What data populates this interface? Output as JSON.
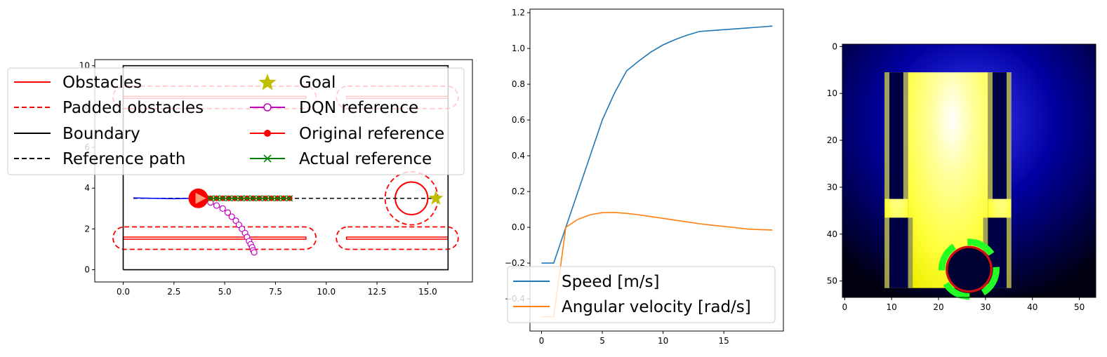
{
  "colors": {
    "obstacle": "#ff0000",
    "padded": "#ff0000",
    "boundary": "#000000",
    "reference": "#000000",
    "goal": "#bfbf00",
    "dqn": "#bf00bf",
    "original": "#ff0000",
    "actual": "#008000",
    "path_blue": "#0000ff",
    "speed": "#1f77b4",
    "angular": "#ff7f0e"
  },
  "chart_data": [
    {
      "type": "line",
      "xlim": [
        -1.4,
        17.2
      ],
      "ylim": [
        -0.6,
        10.3
      ],
      "x_ticks": [
        "0.0",
        "2.5",
        "5.0",
        "7.5",
        "10.0",
        "12.5",
        "15.0"
      ],
      "x_tick_values": [
        0,
        2.5,
        5,
        7.5,
        10,
        12.5,
        15
      ],
      "y_ticks": [
        "0",
        "2",
        "4",
        "6",
        "8",
        "10"
      ],
      "y_tick_values": [
        0,
        2,
        4,
        6,
        8,
        10
      ],
      "legend": {
        "placement": "upper-left",
        "entries": [
          {
            "label": "Obstacles",
            "style": "solid",
            "color": "#ff0000"
          },
          {
            "label": "Padded obstacles",
            "style": "dashed",
            "color": "#ff0000"
          },
          {
            "label": "Boundary",
            "style": "solid",
            "color": "#000000"
          },
          {
            "label": "Reference path",
            "style": "dashed",
            "color": "#000000"
          },
          {
            "label": "Goal",
            "style": "star",
            "color": "#bfbf00"
          },
          {
            "label": "DQN reference",
            "style": "circle-open",
            "color": "#bf00bf"
          },
          {
            "label": "Original reference",
            "style": "dot",
            "color": "#ff0000"
          },
          {
            "label": "Actual reference",
            "style": "x",
            "color": "#008000"
          }
        ]
      },
      "boundary": [
        [
          0,
          0
        ],
        [
          16,
          0
        ],
        [
          16,
          10
        ],
        [
          0,
          10
        ],
        [
          0,
          0
        ]
      ],
      "obstacles": [
        {
          "x0": 0,
          "x1": 9,
          "y0": 1.5,
          "y1": 1.6
        },
        {
          "x0": 11,
          "x1": 16,
          "y0": 1.5,
          "y1": 1.6
        },
        {
          "x0": 0,
          "x1": 9,
          "y0": 8.4,
          "y1": 8.5
        },
        {
          "x0": 11,
          "x1": 16,
          "y0": 8.4,
          "y1": 8.5
        }
      ],
      "padded_obstacles": [
        {
          "x0": -0.5,
          "x1": 9.5,
          "y0": 1.0,
          "y1": 2.1
        },
        {
          "x0": 10.5,
          "x1": 16.5,
          "y0": 1.0,
          "y1": 2.1
        },
        {
          "x0": -0.5,
          "x1": 9.5,
          "y0": 7.9,
          "y1": 9.0
        },
        {
          "x0": 10.5,
          "x1": 16.5,
          "y0": 7.9,
          "y1": 9.0
        }
      ],
      "circle_obstacle": {
        "cx": 14.2,
        "cy": 3.5,
        "r": 0.8,
        "padded_r": 1.3
      },
      "reference_path": [
        [
          0.5,
          3.5
        ],
        [
          15.4,
          3.5
        ]
      ],
      "goal": [
        15.4,
        3.5
      ],
      "traveled_path": [
        [
          0.5,
          3.52
        ],
        [
          1.5,
          3.5
        ],
        [
          2.5,
          3.48
        ],
        [
          3.3,
          3.5
        ],
        [
          3.7,
          3.5
        ]
      ],
      "robot": {
        "x": 3.7,
        "y": 3.5
      },
      "dqn_reference": {
        "x": [
          4.0,
          4.3,
          4.6,
          4.9,
          5.15,
          5.35,
          5.55,
          5.7,
          5.85,
          6.0,
          6.1,
          6.2,
          6.28,
          6.35,
          6.4,
          6.45
        ],
        "y": [
          3.45,
          3.3,
          3.15,
          3.0,
          2.8,
          2.6,
          2.4,
          2.2,
          2.0,
          1.8,
          1.6,
          1.4,
          1.25,
          1.1,
          0.95,
          0.85
        ]
      },
      "original_reference": {
        "x": [
          4.0,
          4.3,
          4.6,
          4.9,
          5.2,
          5.5,
          5.8,
          6.1,
          6.4,
          6.7,
          7.0,
          7.3,
          7.6,
          7.9,
          8.2
        ],
        "y": [
          3.5,
          3.5,
          3.5,
          3.5,
          3.5,
          3.5,
          3.5,
          3.5,
          3.5,
          3.5,
          3.5,
          3.5,
          3.5,
          3.5,
          3.5
        ]
      },
      "actual_reference": {
        "x": [
          4.0,
          4.3,
          4.6,
          4.9,
          5.2,
          5.5,
          5.8,
          6.1,
          6.4,
          6.7,
          7.0,
          7.3,
          7.6,
          7.9,
          8.2
        ],
        "y": [
          3.5,
          3.5,
          3.5,
          3.5,
          3.5,
          3.5,
          3.5,
          3.5,
          3.5,
          3.5,
          3.5,
          3.5,
          3.5,
          3.5,
          3.5
        ]
      }
    },
    {
      "type": "line",
      "xlim": [
        -0.95,
        19.9
      ],
      "ylim": [
        -0.58,
        1.22
      ],
      "x_ticks": [
        "0",
        "5",
        "10",
        "15"
      ],
      "x_tick_values": [
        0,
        5,
        10,
        15
      ],
      "y_ticks": [
        "−0.4",
        "−0.2",
        "0.0",
        "0.2",
        "0.4",
        "0.6",
        "0.8",
        "1.0",
        "1.2"
      ],
      "y_tick_values": [
        -0.4,
        -0.2,
        0,
        0.2,
        0.4,
        0.6,
        0.8,
        1.0,
        1.2
      ],
      "legend": {
        "placement": "lower-left"
      },
      "x": [
        0,
        1,
        2,
        3,
        4,
        5,
        6,
        7,
        8,
        9,
        10,
        11,
        12,
        13,
        14,
        15,
        16,
        17,
        18,
        19
      ],
      "series": [
        {
          "name": "Speed [m/s]",
          "color": "#1f77b4",
          "values": [
            -0.2,
            -0.2,
            0.0,
            0.2,
            0.4,
            0.6,
            0.75,
            0.875,
            0.93,
            0.98,
            1.02,
            1.05,
            1.075,
            1.095,
            1.1,
            1.105,
            1.11,
            1.115,
            1.12,
            1.125
          ]
        },
        {
          "name": "Angular velocity [rad/s]",
          "color": "#ff7f0e",
          "values": [
            -0.5,
            -0.5,
            0.0,
            0.045,
            0.07,
            0.082,
            0.083,
            0.078,
            0.07,
            0.06,
            0.05,
            0.04,
            0.03,
            0.02,
            0.012,
            0.005,
            -0.002,
            -0.01,
            -0.013,
            -0.015
          ]
        }
      ]
    },
    {
      "type": "heatmap",
      "grid": 54,
      "xlim": [
        -0.5,
        53.5
      ],
      "ylim": [
        53.5,
        -0.5
      ],
      "x_ticks": [
        "0",
        "10",
        "20",
        "30",
        "40",
        "50"
      ],
      "x_tick_values": [
        0,
        10,
        20,
        30,
        40,
        50
      ],
      "y_ticks": [
        "0",
        "10",
        "20",
        "30",
        "40",
        "50"
      ],
      "y_tick_values": [
        0,
        10,
        20,
        30,
        40,
        50
      ],
      "bright_center": [
        27,
        16
      ],
      "floor_regions": [
        {
          "col0": 9,
          "col1": 14,
          "row0": 6,
          "row1": 52
        },
        {
          "col0": 14,
          "col1": 31,
          "row0": 6,
          "row1": 52
        },
        {
          "col0": 31,
          "col1": 36,
          "row0": 6,
          "row1": 52
        }
      ],
      "wall_regions": [
        {
          "col0": 10,
          "col1": 13,
          "row0": 6,
          "row1": 33
        },
        {
          "col0": 32,
          "col1": 35,
          "row0": 6,
          "row1": 33
        },
        {
          "col0": 10,
          "col1": 14,
          "row0": 37,
          "row1": 52
        },
        {
          "col0": 31,
          "col1": 35,
          "row0": 37,
          "row1": 52
        }
      ],
      "hole": {
        "cx": 27,
        "cy": 48,
        "r": 4.5
      }
    }
  ]
}
